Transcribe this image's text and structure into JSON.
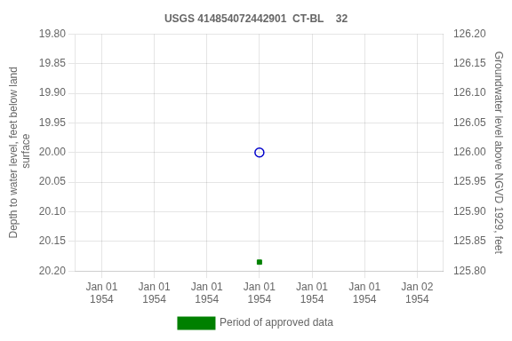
{
  "chart_data": {
    "type": "scatter",
    "title": "USGS 414854072442901  CT-BL    32",
    "y_label": "Depth to water level, feet below land\n surface",
    "y2_label": "Groundwater level above NGVD 1929, feet",
    "categories": [
      "Jan 01\n1954",
      "Jan 01\n1954",
      "Jan 01\n1954",
      "Jan 01\n1954",
      "Jan 01\n1954",
      "Jan 01\n1954",
      "Jan 02\n1954"
    ],
    "series": [
      {
        "color": "#0000cc",
        "marker": "circle",
        "values": [
          null,
          null,
          null,
          20.0,
          null,
          null,
          null
        ]
      },
      {
        "name": "Period of approved data",
        "color": "#008000",
        "marker": "square",
        "values": [
          null,
          null,
          null,
          20.185,
          null,
          null,
          null
        ]
      }
    ],
    "ylim": [
      20.2,
      19.8
    ],
    "yticks": [
      {
        "value": 19.8,
        "label": "19.80"
      },
      19.85,
      {
        "value": 19.9,
        "label": "19.90"
      },
      19.95,
      {
        "value": 20,
        "label": "20.00"
      },
      20.05,
      {
        "value": 20.1,
        "label": "20.10"
      },
      20.15,
      {
        "value": 20.2,
        "label": "20.20"
      }
    ],
    "y2lim": [
      125.8,
      126.2
    ],
    "y2ticks": [
      {
        "value": 125.8,
        "label": "125.80"
      },
      125.85,
      {
        "value": 125.9,
        "label": "125.90"
      },
      125.95,
      {
        "value": 126,
        "label": "126.00"
      },
      126.05,
      {
        "value": 126.1,
        "label": "126.10"
      },
      126.15,
      {
        "value": 126.2,
        "label": "126.20"
      }
    ],
    "grid": true,
    "legend": "bottom"
  }
}
